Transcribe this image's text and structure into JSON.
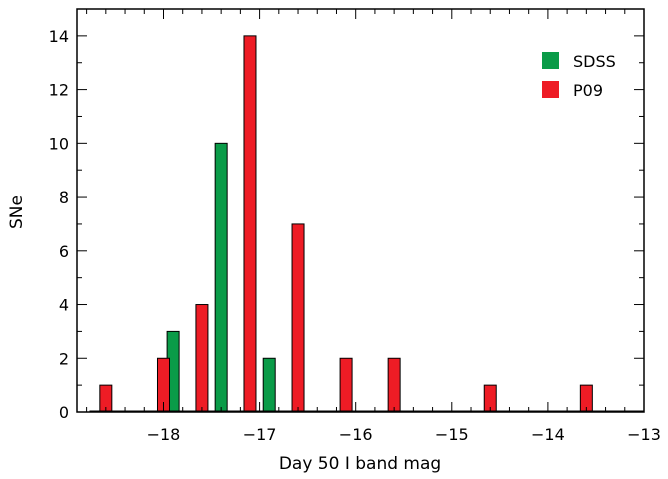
{
  "chart_data": {
    "type": "bar",
    "xlabel": "Day 50 I band mag",
    "ylabel": "SNe",
    "xlim": [
      -18.9,
      -13
    ],
    "ylim": [
      0,
      15
    ],
    "x_ticks": [
      -18,
      -17,
      -16,
      -15,
      -14,
      -13
    ],
    "x_tick_labels": [
      "−18",
      "−17",
      "−16",
      "−15",
      "−14",
      "−13"
    ],
    "y_ticks": [
      0,
      2,
      4,
      6,
      8,
      10,
      12,
      14
    ],
    "y_tick_labels": [
      "0",
      "2",
      "4",
      "6",
      "8",
      "10",
      "12",
      "14"
    ],
    "legend_position": "top-right",
    "series": [
      {
        "name": "SDSS",
        "color": "#0a9b48",
        "bins": [
          {
            "x": -17.9,
            "value": 3
          },
          {
            "x": -17.4,
            "value": 10
          },
          {
            "x": -16.9,
            "value": 2
          }
        ]
      },
      {
        "name": "P09",
        "color": "#ee1c25",
        "bins": [
          {
            "x": -18.6,
            "value": 1
          },
          {
            "x": -18.0,
            "value": 2
          },
          {
            "x": -17.6,
            "value": 4
          },
          {
            "x": -17.1,
            "value": 14
          },
          {
            "x": -16.6,
            "value": 7
          },
          {
            "x": -16.1,
            "value": 2
          },
          {
            "x": -15.6,
            "value": 2
          },
          {
            "x": -14.6,
            "value": 1
          },
          {
            "x": -13.6,
            "value": 1
          }
        ]
      }
    ]
  }
}
